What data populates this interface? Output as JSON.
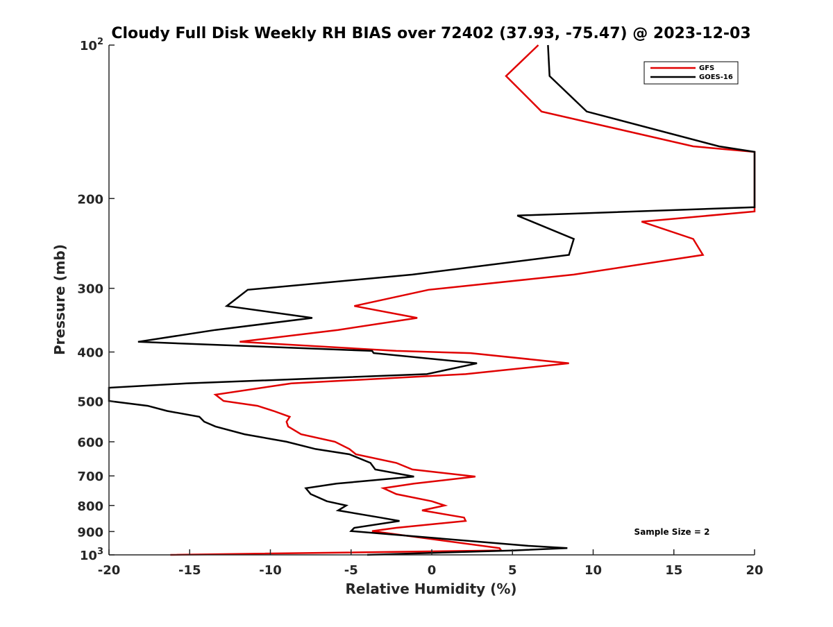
{
  "chart_data": {
    "type": "line",
    "title": "Cloudy Full Disk Weekly RH BIAS over 72402 (37.93, -75.47) @ 2023-12-03",
    "xlabel": "Relative Humidity (%)",
    "ylabel": "Pressure (mb)",
    "xlim": [
      -20,
      20
    ],
    "ylim": [
      100,
      1000
    ],
    "y_scale": "log",
    "y_reversed": true,
    "x_ticks": [
      -20,
      -15,
      -10,
      -5,
      0,
      5,
      10,
      15,
      20
    ],
    "y_ticks": [
      {
        "value": 100,
        "label": "10",
        "sup": "2"
      },
      {
        "value": 200,
        "label": "200",
        "sup": ""
      },
      {
        "value": 300,
        "label": "300",
        "sup": ""
      },
      {
        "value": 400,
        "label": "400",
        "sup": ""
      },
      {
        "value": 500,
        "label": "500",
        "sup": ""
      },
      {
        "value": 600,
        "label": "600",
        "sup": ""
      },
      {
        "value": 700,
        "label": "700",
        "sup": ""
      },
      {
        "value": 800,
        "label": "800",
        "sup": ""
      },
      {
        "value": 900,
        "label": "900",
        "sup": ""
      },
      {
        "value": 1000,
        "label": "10",
        "sup": "3"
      }
    ],
    "legend_position": "top-right",
    "annotation": "Sample Size = 2",
    "series": [
      {
        "name": "GFS",
        "color": "#e00000",
        "points": [
          [
            6.6,
            100
          ],
          [
            4.6,
            115
          ],
          [
            6.8,
            135
          ],
          [
            16.2,
            158
          ],
          [
            20,
            162
          ],
          [
            20,
            212
          ],
          [
            13.0,
            222
          ],
          [
            16.2,
            240
          ],
          [
            16.8,
            258
          ],
          [
            8.8,
            282
          ],
          [
            -0.2,
            302
          ],
          [
            -4.8,
            325
          ],
          [
            -0.9,
            343
          ],
          [
            -5.8,
            362
          ],
          [
            -11.9,
            382
          ],
          [
            -2.2,
            398
          ],
          [
            2.4,
            402
          ],
          [
            8.5,
            421
          ],
          [
            2.1,
            442
          ],
          [
            -8.7,
            461
          ],
          [
            -13.4,
            485
          ],
          [
            -12.9,
            499
          ],
          [
            -10.8,
            510
          ],
          [
            -9.8,
            522
          ],
          [
            -8.8,
            536
          ],
          [
            -9.0,
            548
          ],
          [
            -8.9,
            560
          ],
          [
            -8.1,
            580
          ],
          [
            -6.0,
            600
          ],
          [
            -5.1,
            620
          ],
          [
            -4.7,
            635
          ],
          [
            -2.2,
            660
          ],
          [
            -1.2,
            680
          ],
          [
            2.7,
            702
          ],
          [
            -1.1,
            725
          ],
          [
            -3.0,
            740
          ],
          [
            -2.2,
            760
          ],
          [
            0.0,
            785
          ],
          [
            0.8,
            800
          ],
          [
            -0.6,
            818
          ],
          [
            2.0,
            845
          ],
          [
            2.1,
            858
          ],
          [
            -2.2,
            885
          ],
          [
            -3.7,
            898
          ],
          [
            4.2,
            970
          ],
          [
            4.3,
            980
          ],
          [
            -16.2,
            1000
          ]
        ]
      },
      {
        "name": "GOES-16",
        "color": "#000000",
        "points": [
          [
            7.2,
            100
          ],
          [
            7.3,
            115
          ],
          [
            9.6,
            135
          ],
          [
            17.8,
            158
          ],
          [
            20,
            162
          ],
          [
            20,
            208
          ],
          [
            5.3,
            216
          ],
          [
            8.8,
            240
          ],
          [
            8.5,
            258
          ],
          [
            -1.2,
            282
          ],
          [
            -11.4,
            302
          ],
          [
            -12.7,
            325
          ],
          [
            -7.4,
            343
          ],
          [
            -13.4,
            362
          ],
          [
            -18.2,
            382
          ],
          [
            -3.7,
            398
          ],
          [
            -3.6,
            402
          ],
          [
            2.8,
            421
          ],
          [
            -0.3,
            442
          ],
          [
            -15.2,
            461
          ],
          [
            -20,
            470
          ],
          [
            -20,
            499
          ],
          [
            -17.6,
            510
          ],
          [
            -16.4,
            522
          ],
          [
            -14.4,
            536
          ],
          [
            -14.1,
            548
          ],
          [
            -13.4,
            560
          ],
          [
            -11.6,
            580
          ],
          [
            -9.0,
            600
          ],
          [
            -7.2,
            620
          ],
          [
            -5.1,
            635
          ],
          [
            -3.8,
            660
          ],
          [
            -3.5,
            680
          ],
          [
            -1.1,
            702
          ],
          [
            -5.9,
            725
          ],
          [
            -7.8,
            740
          ],
          [
            -7.5,
            760
          ],
          [
            -6.5,
            785
          ],
          [
            -5.3,
            800
          ],
          [
            -5.8,
            818
          ],
          [
            -3.2,
            845
          ],
          [
            -2.0,
            858
          ],
          [
            -4.8,
            885
          ],
          [
            -5.0,
            898
          ],
          [
            6.0,
            960
          ],
          [
            8.4,
            970
          ],
          [
            5.1,
            980
          ],
          [
            -4.0,
            1000
          ]
        ]
      }
    ]
  }
}
